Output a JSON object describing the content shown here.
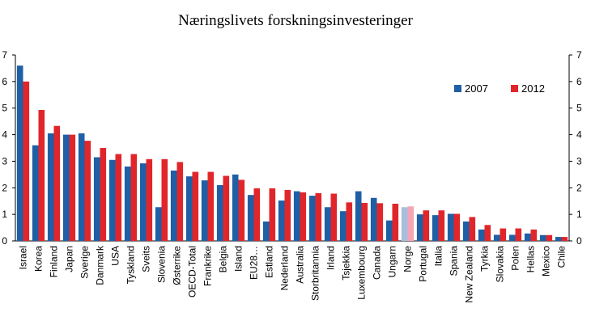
{
  "chart_data": {
    "type": "bar",
    "title": "Næringslivets forskningsinvesteringer",
    "xlabel": "",
    "ylabel": "",
    "ylim": [
      0,
      7
    ],
    "yticks": [
      0,
      1,
      2,
      3,
      4,
      5,
      6,
      7
    ],
    "grid": false,
    "legend_position": "top-right",
    "categories": [
      "Israel",
      "Korea",
      "Finland",
      "Japan",
      "Sverige",
      "Danmark",
      "USA",
      "Tyskland",
      "Sveits",
      "Slovenia",
      "Østerrike",
      "OECD-Total",
      "Frankrike",
      "Belgia",
      "Island",
      "EU28…",
      "Estland",
      "Nederland",
      "Australia",
      "Storbritannia",
      "Irland",
      "Tsjekkia",
      "Luxembourg",
      "Canada",
      "Ungarn",
      "Norge",
      "Portugal",
      "Italia",
      "Spania",
      "New Zealand",
      "Tyrkia",
      "Slovakia",
      "Polen",
      "Hellas",
      "Mexico",
      "Chile"
    ],
    "series": [
      {
        "name": "2007",
        "color": "#1f5fa6",
        "values": [
          6.6,
          3.6,
          4.05,
          4.0,
          4.05,
          3.15,
          3.05,
          2.8,
          2.92,
          1.27,
          2.65,
          2.43,
          2.28,
          2.1,
          2.5,
          1.73,
          0.73,
          1.52,
          1.87,
          1.7,
          1.27,
          1.12,
          1.87,
          1.62,
          0.77,
          1.27,
          1.0,
          0.97,
          1.02,
          0.73,
          0.43,
          0.23,
          0.23,
          0.28,
          0.22,
          0.15
        ]
      },
      {
        "name": "2012",
        "color": "#e0262b",
        "values": [
          6.0,
          4.93,
          4.33,
          4.0,
          3.77,
          3.5,
          3.27,
          3.27,
          3.08,
          3.08,
          2.97,
          2.6,
          2.6,
          2.45,
          2.3,
          1.98,
          1.98,
          1.92,
          1.83,
          1.8,
          1.78,
          1.45,
          1.43,
          1.42,
          1.4,
          1.3,
          1.15,
          1.15,
          1.02,
          0.9,
          0.6,
          0.47,
          0.47,
          0.43,
          0.22,
          0.15
        ]
      }
    ],
    "highlight": {
      "category": "Norge",
      "colors": {
        "2007": "#a8bedd",
        "2012": "#f4a6b6"
      }
    }
  }
}
